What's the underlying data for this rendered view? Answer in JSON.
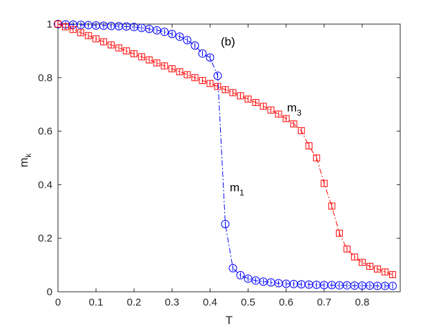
{
  "chart_data": {
    "type": "line",
    "title": "",
    "panel_label": "(b)",
    "xlabel": "T",
    "ylabel": {
      "base": "m",
      "sub": "k"
    },
    "xlim": [
      0,
      0.9
    ],
    "ylim": [
      0,
      1
    ],
    "grid": false,
    "xticks": [
      "0",
      "0.1",
      "0.2",
      "0.3",
      "0.4",
      "0.5",
      "0.6",
      "0.7",
      "0.8"
    ],
    "yticks": [
      "0",
      "0.2",
      "0.4",
      "0.6",
      "0.8",
      "1"
    ],
    "xtick_values": [
      0,
      0.1,
      0.2,
      0.3,
      0.4,
      0.5,
      0.6,
      0.7,
      0.8
    ],
    "ytick_values": [
      0,
      0.2,
      0.4,
      0.6,
      0.8,
      1.0
    ],
    "series": [
      {
        "name": "m_1",
        "label_base": "m",
        "label_sub": "1",
        "color": "#0000ff",
        "marker": "circle",
        "line_style": "dash-dot",
        "x": [
          0.0,
          0.02,
          0.04,
          0.06,
          0.08,
          0.1,
          0.12,
          0.14,
          0.16,
          0.18,
          0.2,
          0.22,
          0.24,
          0.26,
          0.28,
          0.3,
          0.32,
          0.34,
          0.36,
          0.38,
          0.4,
          0.42,
          0.44,
          0.46,
          0.48,
          0.5,
          0.52,
          0.54,
          0.56,
          0.58,
          0.6,
          0.62,
          0.64,
          0.66,
          0.68,
          0.7,
          0.72,
          0.74,
          0.76,
          0.78,
          0.8,
          0.82,
          0.84,
          0.86,
          0.88
        ],
        "y": [
          1.0,
          0.999,
          0.998,
          0.997,
          0.996,
          0.995,
          0.994,
          0.993,
          0.992,
          0.991,
          0.989,
          0.986,
          0.982,
          0.977,
          0.971,
          0.963,
          0.953,
          0.94,
          0.92,
          0.89,
          0.875,
          0.807,
          0.253,
          0.088,
          0.062,
          0.049,
          0.042,
          0.038,
          0.035,
          0.032,
          0.03,
          0.029,
          0.028,
          0.027,
          0.026,
          0.025,
          0.025,
          0.024,
          0.024,
          0.023,
          0.023,
          0.023,
          0.022,
          0.022,
          0.022
        ]
      },
      {
        "name": "m_3",
        "label_base": "m",
        "label_sub": "3",
        "color": "#ff0000",
        "marker": "square",
        "line_style": "dash-dot",
        "x": [
          0.0,
          0.02,
          0.04,
          0.06,
          0.08,
          0.1,
          0.12,
          0.14,
          0.16,
          0.18,
          0.2,
          0.22,
          0.24,
          0.26,
          0.28,
          0.3,
          0.32,
          0.34,
          0.36,
          0.38,
          0.4,
          0.42,
          0.44,
          0.46,
          0.48,
          0.5,
          0.52,
          0.54,
          0.56,
          0.58,
          0.6,
          0.62,
          0.64,
          0.66,
          0.68,
          0.7,
          0.72,
          0.74,
          0.76,
          0.78,
          0.8,
          0.82,
          0.84,
          0.86,
          0.88
        ],
        "y": [
          1.0,
          0.99,
          0.98,
          0.968,
          0.957,
          0.945,
          0.934,
          0.922,
          0.911,
          0.9,
          0.889,
          0.878,
          0.866,
          0.855,
          0.844,
          0.833,
          0.822,
          0.811,
          0.8,
          0.789,
          0.778,
          0.767,
          0.755,
          0.744,
          0.732,
          0.72,
          0.707,
          0.693,
          0.679,
          0.664,
          0.647,
          0.627,
          0.602,
          0.545,
          0.5,
          0.405,
          0.32,
          0.219,
          0.16,
          0.13,
          0.11,
          0.095,
          0.085,
          0.074,
          0.064
        ]
      }
    ]
  }
}
